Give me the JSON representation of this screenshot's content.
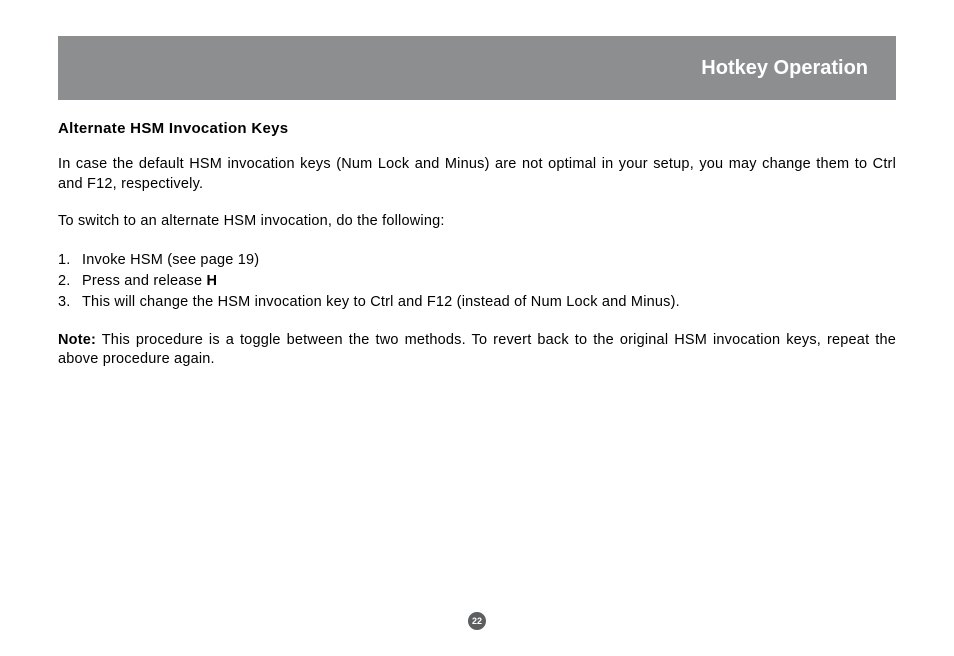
{
  "header": {
    "title": "Hotkey Operation",
    "background_color": "#8c8e90",
    "text_color": "#ffffff",
    "title_fontsize": 20
  },
  "section": {
    "title": "Alternate HSM Invocation Keys",
    "title_fontsize": 15
  },
  "paragraphs": {
    "intro": "In case the default HSM invocation keys (Num Lock and Minus) are not optimal in your setup, you may change them to Ctrl and F12, respectively.",
    "lead": "To switch to an alternate HSM invocation, do the following:"
  },
  "steps": [
    {
      "num": "1.",
      "text": "Invoke HSM (see page 19)"
    },
    {
      "num": "2.",
      "prefix": "Press and release ",
      "bold": "H",
      "suffix": ""
    },
    {
      "num": "3.",
      "text": "This will change the HSM invocation key to Ctrl and F12 (instead of Num Lock and Minus)."
    }
  ],
  "note": {
    "label": "Note:",
    "text": "  This procedure is a toggle between the two methods.  To revert back to the original HSM invocation keys, repeat the above procedure again."
  },
  "body_fontsize": 14.5,
  "page_number": "22",
  "page_number_bg": "#5c5e60",
  "page_bg": "#ffffff",
  "text_color": "#000000"
}
